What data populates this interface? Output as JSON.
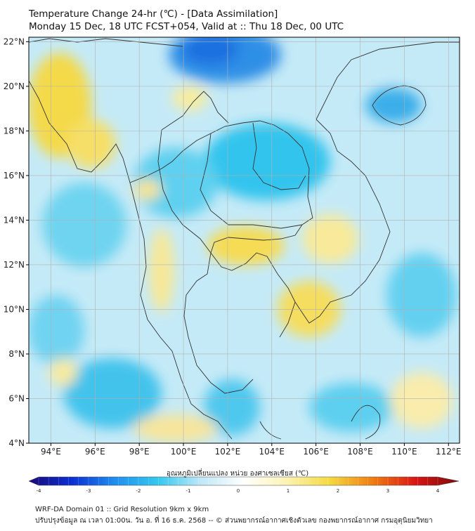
{
  "header": {
    "title_line1": "Temperature Change 24-hr (℃) - [Data Assimilation]",
    "title_line2": "Monday 15 Dec, 18 UTC FCST+054, Valid at :: Thu 18 Dec, 00 UTC"
  },
  "map": {
    "extent": {
      "lon_min": 93,
      "lon_max": 112.5,
      "lat_min": 4,
      "lat_max": 22.2
    },
    "lat_ticks": [
      {
        "value": 22,
        "label": "22°N"
      },
      {
        "value": 20,
        "label": "20°N"
      },
      {
        "value": 18,
        "label": "18°N"
      },
      {
        "value": 16,
        "label": "16°N"
      },
      {
        "value": 14,
        "label": "14°N"
      },
      {
        "value": 12,
        "label": "12°N"
      },
      {
        "value": 10,
        "label": "10°N"
      },
      {
        "value": 8,
        "label": "8°N"
      },
      {
        "value": 6,
        "label": "6°N"
      },
      {
        "value": 4,
        "label": "4°N"
      }
    ],
    "lon_ticks": [
      {
        "value": 94,
        "label": "94°E"
      },
      {
        "value": 96,
        "label": "96°E"
      },
      {
        "value": 98,
        "label": "98°E"
      },
      {
        "value": 100,
        "label": "100°E"
      },
      {
        "value": 102,
        "label": "102°E"
      },
      {
        "value": 104,
        "label": "104°E"
      },
      {
        "value": 106,
        "label": "106°E"
      },
      {
        "value": 108,
        "label": "108°E"
      },
      {
        "value": 110,
        "label": "110°E"
      },
      {
        "value": 112,
        "label": "112°E"
      }
    ]
  },
  "colorbar": {
    "label": "อุณหภูมิเปลี่ยนแปลง หน่วย องศาเซลเซียส (℃)",
    "min": -4,
    "max": 4,
    "ticks": [
      {
        "value": -4,
        "label": "-4"
      },
      {
        "value": -3,
        "label": "-3"
      },
      {
        "value": -2,
        "label": "-2"
      },
      {
        "value": -1,
        "label": "-1"
      },
      {
        "value": 0,
        "label": "0"
      },
      {
        "value": 1,
        "label": "1"
      },
      {
        "value": 2,
        "label": "2"
      },
      {
        "value": 3,
        "label": "3"
      },
      {
        "value": 4,
        "label": "4"
      }
    ],
    "stops": [
      "#1a0a78",
      "#0b2fd2",
      "#1f8ef0",
      "#33c8ee",
      "#bfe8f7",
      "#ffffff",
      "#fcf3b2",
      "#f5da3e",
      "#f07d10",
      "#d91414",
      "#7a0a0a"
    ]
  },
  "footer": {
    "line1": "WRF-DA Domain 01 :: Grid Resolution 9km x 9km",
    "line2": "ปรับปรุงข้อมูล ณ เวลา 01:00น. วัน อ. ที่ 16 ธ.ค. 2568 -- © ส่วนพยากรณ์อากาศเชิงตัวเลข กองพยากรณ์อากาศ กรมอุตุนิยมวิทยา"
  }
}
